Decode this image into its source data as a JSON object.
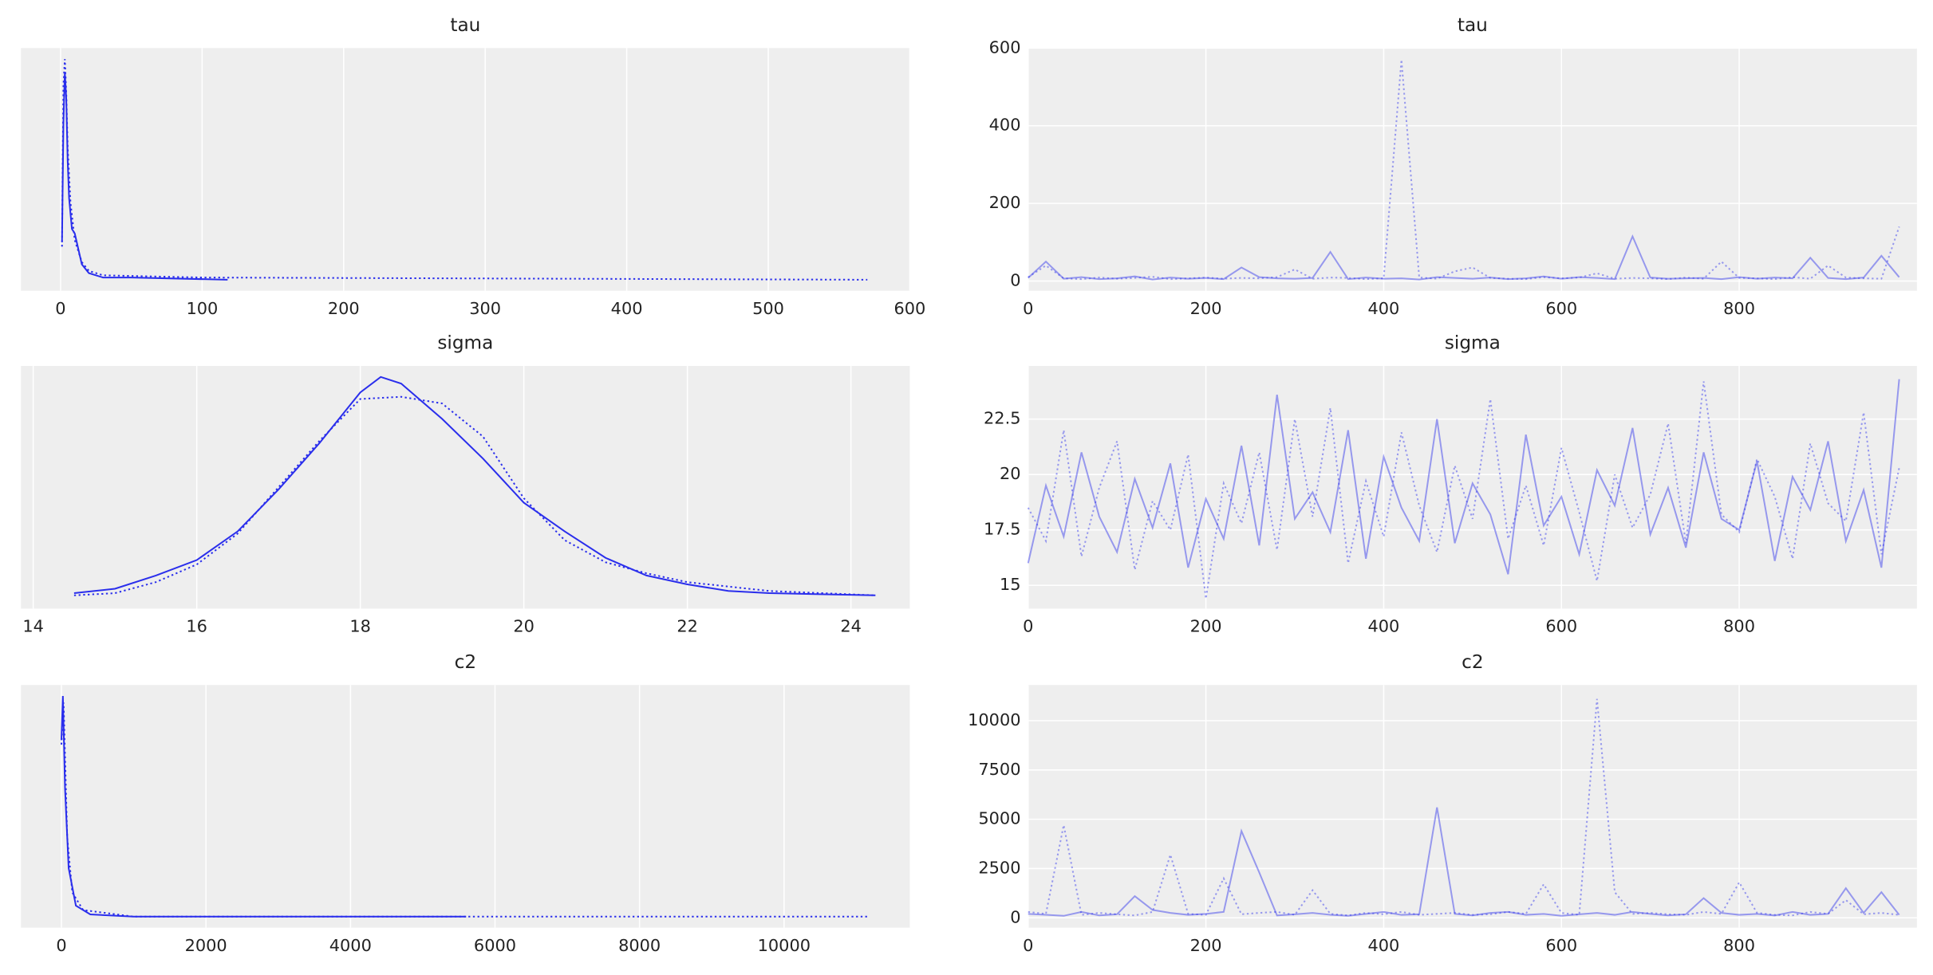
{
  "chart_data": [
    {
      "type": "line",
      "title": "tau",
      "xlim": [
        -28,
        600
      ],
      "xticks": [
        0,
        100,
        200,
        300,
        400,
        500,
        600
      ],
      "ylim": [
        -0.05,
        1.05
      ],
      "grid": true,
      "series": [
        {
          "color": "#2a2eec",
          "line_style": "solid",
          "opacity": 1,
          "x": [
            1,
            2,
            3,
            4,
            5,
            6,
            8,
            10,
            15,
            20,
            30,
            50,
            118
          ],
          "values": [
            0.17,
            0.71,
            0.94,
            0.82,
            0.54,
            0.37,
            0.23,
            0.21,
            0.07,
            0.03,
            0.01,
            0.01,
            0
          ]
        },
        {
          "color": "#2a2eec",
          "line_style": "dotted",
          "opacity": 1,
          "x": [
            1,
            2,
            3,
            4,
            5,
            7,
            10,
            15,
            20,
            30,
            100,
            570
          ],
          "values": [
            0.15,
            0.88,
            1.0,
            0.85,
            0.6,
            0.35,
            0.18,
            0.08,
            0.04,
            0.02,
            0.01,
            0
          ]
        }
      ]
    },
    {
      "type": "line",
      "title": "tau",
      "xlim": [
        0,
        1000
      ],
      "xticks": [
        0,
        200,
        400,
        600,
        800
      ],
      "ylim": [
        -25,
        600
      ],
      "yticks": [
        0,
        200,
        400,
        600
      ],
      "grid": true,
      "x": [
        0,
        20,
        40,
        60,
        80,
        100,
        120,
        140,
        160,
        180,
        200,
        220,
        240,
        260,
        280,
        300,
        320,
        340,
        360,
        380,
        400,
        420,
        440,
        460,
        480,
        500,
        520,
        540,
        560,
        580,
        600,
        620,
        640,
        660,
        680,
        700,
        720,
        740,
        760,
        780,
        800,
        820,
        840,
        860,
        880,
        900,
        920,
        940,
        960,
        980
      ],
      "series": [
        {
          "color": "#2a2eec",
          "line_style": "solid",
          "opacity": 0.45,
          "values": [
            8,
            50,
            6,
            10,
            5,
            7,
            12,
            4,
            9,
            6,
            8,
            5,
            35,
            10,
            7,
            6,
            8,
            75,
            5,
            9,
            6,
            7,
            4,
            10,
            8,
            6,
            9,
            5,
            7,
            12,
            6,
            10,
            8,
            5,
            115,
            9,
            6,
            7,
            8,
            5,
            10,
            6,
            9,
            7,
            60,
            8,
            5,
            9,
            65,
            10
          ]
        },
        {
          "color": "#2a2eec",
          "line_style": "dotted",
          "opacity": 0.45,
          "values": [
            10,
            40,
            7,
            5,
            9,
            6,
            8,
            11,
            5,
            7,
            9,
            6,
            8,
            7,
            10,
            30,
            6,
            9,
            8,
            5,
            7,
            570,
            9,
            6,
            25,
            35,
            8,
            6,
            5,
            10,
            7,
            9,
            20,
            6,
            8,
            7,
            5,
            9,
            6,
            50,
            8,
            7,
            5,
            10,
            6,
            40,
            9,
            7,
            6,
            140
          ]
        }
      ]
    },
    {
      "type": "line",
      "title": "sigma",
      "xlim": [
        13.85,
        24.72
      ],
      "xticks": [
        14,
        16,
        18,
        20,
        22,
        24
      ],
      "ylim": [
        -0.05,
        1.05
      ],
      "grid": true,
      "series": [
        {
          "color": "#2a2eec",
          "line_style": "solid",
          "opacity": 1,
          "x": [
            14.5,
            15,
            15.5,
            16,
            16.5,
            17,
            17.5,
            18,
            18.25,
            18.5,
            19,
            19.5,
            20,
            20.5,
            21,
            21.5,
            22,
            22.5,
            23,
            24.3
          ],
          "values": [
            0.02,
            0.04,
            0.1,
            0.17,
            0.3,
            0.49,
            0.7,
            0.93,
            1.0,
            0.97,
            0.81,
            0.63,
            0.43,
            0.3,
            0.18,
            0.1,
            0.06,
            0.03,
            0.02,
            0.01
          ]
        },
        {
          "color": "#2a2eec",
          "line_style": "dotted",
          "opacity": 1,
          "x": [
            14.5,
            15,
            15.5,
            16,
            16.5,
            17,
            17.5,
            18,
            18.5,
            19,
            19.5,
            20,
            20.5,
            21,
            21.5,
            22,
            22.5,
            23,
            24.3
          ],
          "values": [
            0.01,
            0.02,
            0.07,
            0.15,
            0.29,
            0.5,
            0.71,
            0.9,
            0.91,
            0.88,
            0.73,
            0.45,
            0.26,
            0.16,
            0.11,
            0.07,
            0.05,
            0.03,
            0.01
          ]
        }
      ]
    },
    {
      "type": "line",
      "title": "sigma",
      "xlim": [
        0,
        1000
      ],
      "xticks": [
        0,
        200,
        400,
        600,
        800
      ],
      "ylim": [
        13.95,
        24.9
      ],
      "yticks": [
        15.0,
        17.5,
        20.0,
        22.5
      ],
      "grid": true,
      "x": [
        0,
        20,
        40,
        60,
        80,
        100,
        120,
        140,
        160,
        180,
        200,
        220,
        240,
        260,
        280,
        300,
        320,
        340,
        360,
        380,
        400,
        420,
        440,
        460,
        480,
        500,
        520,
        540,
        560,
        580,
        600,
        620,
        640,
        660,
        680,
        700,
        720,
        740,
        760,
        780,
        800,
        820,
        840,
        860,
        880,
        900,
        920,
        940,
        960,
        980
      ],
      "series": [
        {
          "color": "#2a2eec",
          "line_style": "solid",
          "opacity": 0.45,
          "values": [
            16.0,
            19.5,
            17.2,
            21.0,
            18.1,
            16.5,
            19.8,
            17.6,
            20.5,
            15.8,
            18.9,
            17.1,
            21.3,
            16.8,
            23.6,
            18.0,
            19.2,
            17.4,
            22.0,
            16.2,
            20.8,
            18.5,
            17.0,
            22.5,
            16.9,
            19.6,
            18.2,
            15.5,
            21.8,
            17.7,
            19.0,
            16.4,
            20.2,
            18.6,
            22.1,
            17.3,
            19.4,
            16.7,
            21.0,
            18.0,
            17.5,
            20.6,
            16.1,
            19.9,
            18.4,
            21.5,
            17.0,
            19.3,
            15.8,
            24.3
          ]
        },
        {
          "color": "#2a2eec",
          "line_style": "dotted",
          "opacity": 0.45,
          "values": [
            18.5,
            17.0,
            22.0,
            16.3,
            19.4,
            21.5,
            15.7,
            18.8,
            17.5,
            20.9,
            14.4,
            19.6,
            17.8,
            21.0,
            16.6,
            22.5,
            18.1,
            23.0,
            16.0,
            19.7,
            17.2,
            21.9,
            18.6,
            16.5,
            20.4,
            18.0,
            23.4,
            17.1,
            19.5,
            16.8,
            21.2,
            18.3,
            15.2,
            20.0,
            17.6,
            19.1,
            22.3,
            16.9,
            24.2,
            18.2,
            17.4,
            20.7,
            19.0,
            16.2,
            21.4,
            18.7,
            17.9,
            22.8,
            16.4,
            20.3
          ]
        }
      ]
    },
    {
      "type": "line",
      "title": "c2",
      "xlim": [
        -560,
        11740
      ],
      "xticks": [
        0,
        2000,
        4000,
        6000,
        8000,
        10000
      ],
      "ylim": [
        -0.05,
        1.05
      ],
      "grid": true,
      "series": [
        {
          "color": "#2a2eec",
          "line_style": "solid",
          "opacity": 1,
          "x": [
            0,
            20,
            50,
            100,
            200,
            400,
            1000,
            5600
          ],
          "values": [
            0.8,
            1.0,
            0.58,
            0.22,
            0.05,
            0.01,
            0,
            0
          ]
        },
        {
          "color": "#2a2eec",
          "line_style": "dotted",
          "opacity": 1,
          "x": [
            0,
            30,
            80,
            150,
            300,
            1000,
            11150
          ],
          "values": [
            0.78,
            0.97,
            0.36,
            0.11,
            0.03,
            0,
            0
          ]
        }
      ]
    },
    {
      "type": "line",
      "title": "c2",
      "xlim": [
        0,
        1000
      ],
      "xticks": [
        0,
        200,
        400,
        600,
        800
      ],
      "ylim": [
        -500,
        11810
      ],
      "yticks": [
        0,
        2500,
        5000,
        7500,
        10000
      ],
      "grid": true,
      "x": [
        0,
        20,
        40,
        60,
        80,
        100,
        120,
        140,
        160,
        180,
        200,
        220,
        240,
        260,
        280,
        300,
        320,
        340,
        360,
        380,
        400,
        420,
        440,
        460,
        480,
        500,
        520,
        540,
        560,
        580,
        600,
        620,
        640,
        660,
        680,
        700,
        720,
        740,
        760,
        780,
        800,
        820,
        840,
        860,
        880,
        900,
        920,
        940,
        960,
        980
      ],
      "series": [
        {
          "color": "#2a2eec",
          "line_style": "solid",
          "opacity": 0.45,
          "values": [
            200,
            150,
            100,
            300,
            120,
            180,
            1100,
            400,
            250,
            150,
            200,
            300,
            4400,
            2300,
            120,
            180,
            250,
            150,
            100,
            200,
            300,
            150,
            180,
            5600,
            200,
            120,
            250,
            300,
            150,
            200,
            100,
            180,
            250,
            150,
            300,
            200,
            120,
            180,
            1000,
            250,
            150,
            200,
            120,
            300,
            150,
            200,
            1500,
            250,
            1300,
            150
          ]
        },
        {
          "color": "#2a2eec",
          "line_style": "dotted",
          "opacity": 0.45,
          "values": [
            300,
            200,
            4700,
            150,
            250,
            180,
            120,
            300,
            3200,
            200,
            150,
            2000,
            180,
            250,
            300,
            150,
            1400,
            200,
            120,
            250,
            180,
            300,
            150,
            200,
            250,
            150,
            180,
            300,
            200,
            1700,
            250,
            150,
            11100,
            1300,
            200,
            250,
            180,
            150,
            300,
            200,
            1800,
            250,
            150,
            120,
            300,
            200,
            900,
            180,
            250,
            150
          ]
        }
      ]
    }
  ]
}
